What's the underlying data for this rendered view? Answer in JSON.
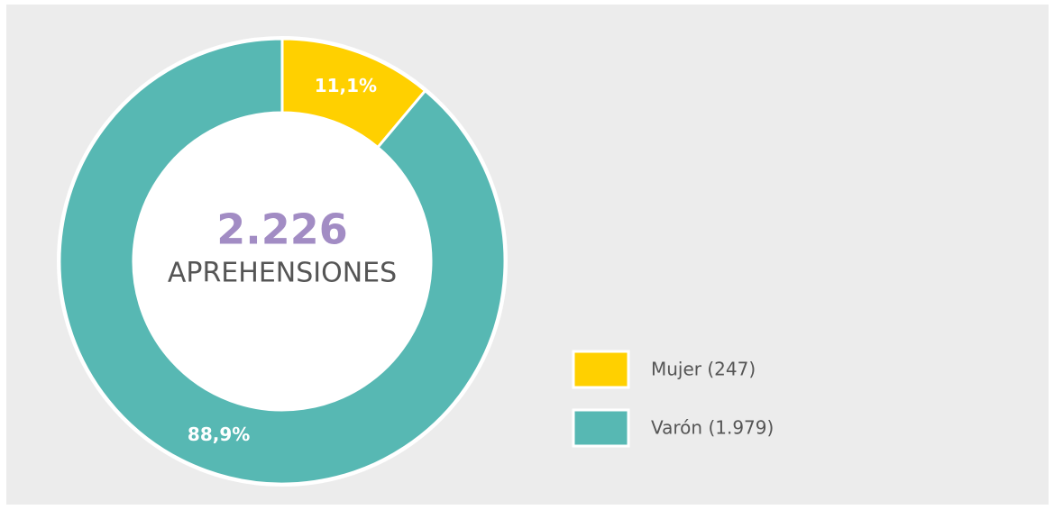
{
  "chart_data": {
    "type": "donut",
    "center_title": "2.226",
    "center_subtitle": "APREHENSIONES",
    "categories": [
      "Mujer (247)",
      "Varón (1.979)"
    ],
    "values": [
      11.1,
      88.9
    ],
    "value_labels": [
      "11,1%",
      "88,9%"
    ],
    "colors": [
      "#ffd000",
      "#57b8b3"
    ],
    "legend": "right"
  }
}
